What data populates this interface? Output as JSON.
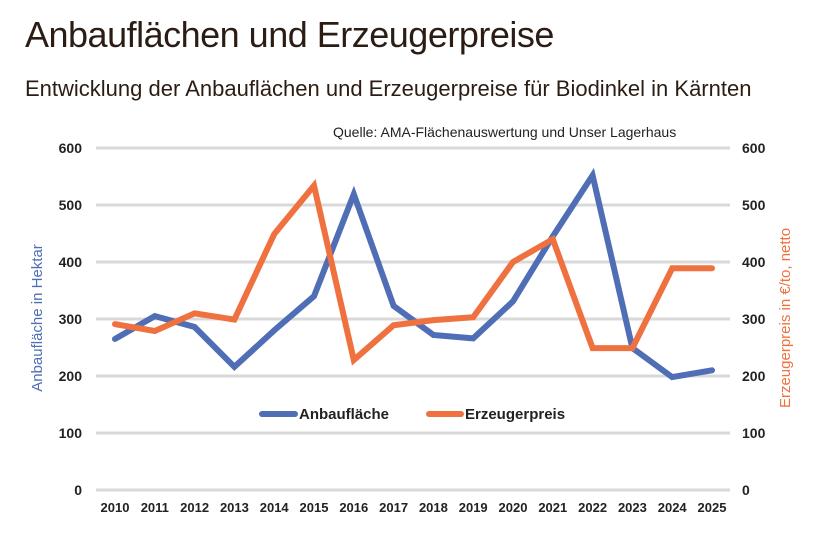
{
  "chart_data": {
    "type": "line",
    "title": "Anbauflächen und Erzeugerpreise",
    "subtitle": "Entwicklung der Anbauflächen und Erzeugerpreise für Biodinkel in Kärnten",
    "source": "Quelle: AMA-Flächenauswertung und Unser Lagerhaus",
    "categories": [
      "2010",
      "2011",
      "2012",
      "2013",
      "2014",
      "2015",
      "2016",
      "2017",
      "2018",
      "2019",
      "2020",
      "2021",
      "2022",
      "2023",
      "2024",
      "2025"
    ],
    "ylabel_left": "Anbaufläche in Hektar",
    "ylabel_right": "Erzeugerpreis in €/to, netto",
    "ylim": [
      0,
      600
    ],
    "yticks": [
      "0",
      "100",
      "200",
      "300",
      "400",
      "500",
      "600"
    ],
    "grid": true,
    "legend_position": "center",
    "series": [
      {
        "name": "Anbaufläche",
        "axis": "left",
        "color": "#4F6EB5",
        "values": [
          265,
          305,
          286,
          216,
          280,
          340,
          519,
          323,
          272,
          266,
          331,
          445,
          552,
          249,
          198,
          210
        ]
      },
      {
        "name": "Erzeugerpreis",
        "axis": "right",
        "color": "#F07140",
        "values": [
          291,
          279,
          310,
          299,
          449,
          534,
          228,
          289,
          298,
          303,
          400,
          440,
          249,
          249,
          389,
          389
        ]
      }
    ]
  }
}
